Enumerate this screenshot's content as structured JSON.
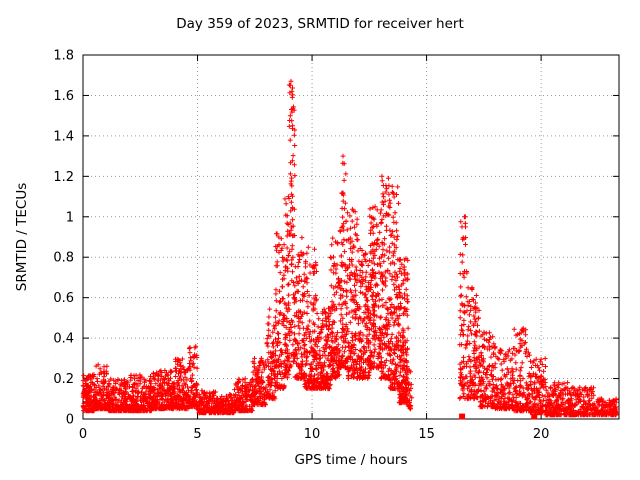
{
  "chart_data": {
    "type": "scatter",
    "title": "Day 359 of 2023, SRMTID for receiver hert",
    "xlabel": "GPS time / hours",
    "ylabel": "SRMTID / TECUs",
    "xlim": [
      0,
      23.4
    ],
    "ylim": [
      0,
      1.8
    ],
    "xticks": [
      0,
      5,
      10,
      15,
      20
    ],
    "yticks": [
      0,
      0.2,
      0.4,
      0.6,
      0.8,
      1,
      1.2,
      1.4,
      1.6,
      1.8
    ],
    "grid": true,
    "marker": "plus",
    "marker_color": "#ff0000",
    "grid_color": "#9a9a9a",
    "border_color": "#000000",
    "data_gaps_hours": [
      [
        14.4,
        16.45
      ]
    ],
    "zero_square_markers": [
      [
        16.55,
        0.012
      ],
      [
        19.7,
        0.012
      ]
    ],
    "notable_peaks": [
      [
        9.08,
        1.67
      ],
      [
        9.12,
        1.62
      ],
      [
        9.05,
        1.5
      ],
      [
        9.15,
        1.45
      ],
      [
        11.35,
        1.3
      ],
      [
        13.05,
        1.2
      ],
      [
        11.4,
        1.18
      ],
      [
        13.5,
        1.15
      ],
      [
        12.75,
        1.05
      ],
      [
        11.55,
        1.02
      ],
      [
        16.65,
        1.0
      ],
      [
        16.7,
        0.95
      ],
      [
        8.55,
        0.9
      ]
    ],
    "density_segments": [
      [
        0.0,
        0.5,
        150,
        0.04,
        0.22,
        2.2
      ],
      [
        0.5,
        1.1,
        150,
        0.05,
        0.27,
        2.4
      ],
      [
        1.1,
        2.0,
        200,
        0.04,
        0.2,
        2.4
      ],
      [
        2.0,
        3.0,
        220,
        0.04,
        0.22,
        2.4
      ],
      [
        3.0,
        4.0,
        220,
        0.05,
        0.24,
        2.2
      ],
      [
        4.0,
        4.6,
        130,
        0.05,
        0.3,
        2.0
      ],
      [
        4.6,
        5.0,
        90,
        0.06,
        0.36,
        1.8
      ],
      [
        5.0,
        5.8,
        160,
        0.03,
        0.14,
        2.2
      ],
      [
        5.8,
        6.6,
        160,
        0.03,
        0.13,
        2.2
      ],
      [
        6.6,
        7.4,
        160,
        0.04,
        0.2,
        2.2
      ],
      [
        7.4,
        8.0,
        130,
        0.07,
        0.3,
        2.0
      ],
      [
        8.0,
        8.4,
        90,
        0.1,
        0.55,
        2.0
      ],
      [
        8.4,
        8.8,
        110,
        0.15,
        0.92,
        1.8
      ],
      [
        8.8,
        9.0,
        70,
        0.2,
        1.1,
        1.6
      ],
      [
        9.0,
        9.25,
        90,
        0.25,
        1.67,
        1.5
      ],
      [
        9.25,
        9.6,
        90,
        0.2,
        0.9,
        1.8
      ],
      [
        9.6,
        10.2,
        180,
        0.15,
        0.85,
        2.0
      ],
      [
        10.2,
        10.8,
        160,
        0.15,
        0.55,
        2.0
      ],
      [
        10.8,
        11.2,
        120,
        0.2,
        0.9,
        1.8
      ],
      [
        11.2,
        11.5,
        100,
        0.25,
        1.3,
        1.6
      ],
      [
        11.5,
        12.0,
        150,
        0.2,
        1.05,
        1.8
      ],
      [
        12.0,
        12.5,
        150,
        0.2,
        0.85,
        1.8
      ],
      [
        12.5,
        13.0,
        160,
        0.25,
        1.05,
        1.7
      ],
      [
        13.0,
        13.4,
        140,
        0.2,
        1.2,
        1.7
      ],
      [
        13.4,
        13.8,
        140,
        0.15,
        1.15,
        1.8
      ],
      [
        13.8,
        14.2,
        200,
        0.08,
        0.8,
        2.0
      ],
      [
        14.2,
        14.35,
        25,
        0.05,
        0.25,
        2.0
      ],
      [
        16.45,
        16.8,
        90,
        0.1,
        1.0,
        1.6
      ],
      [
        16.8,
        17.3,
        110,
        0.1,
        0.65,
        1.9
      ],
      [
        17.3,
        18.0,
        130,
        0.06,
        0.45,
        2.0
      ],
      [
        18.0,
        18.8,
        140,
        0.05,
        0.35,
        2.1
      ],
      [
        18.8,
        19.5,
        130,
        0.04,
        0.45,
        2.2
      ],
      [
        19.5,
        20.2,
        130,
        0.03,
        0.3,
        2.2
      ],
      [
        20.2,
        21.2,
        180,
        0.02,
        0.18,
        2.2
      ],
      [
        21.2,
        22.3,
        200,
        0.02,
        0.16,
        2.2
      ],
      [
        22.3,
        23.3,
        150,
        0.02,
        0.1,
        2.0
      ]
    ]
  }
}
